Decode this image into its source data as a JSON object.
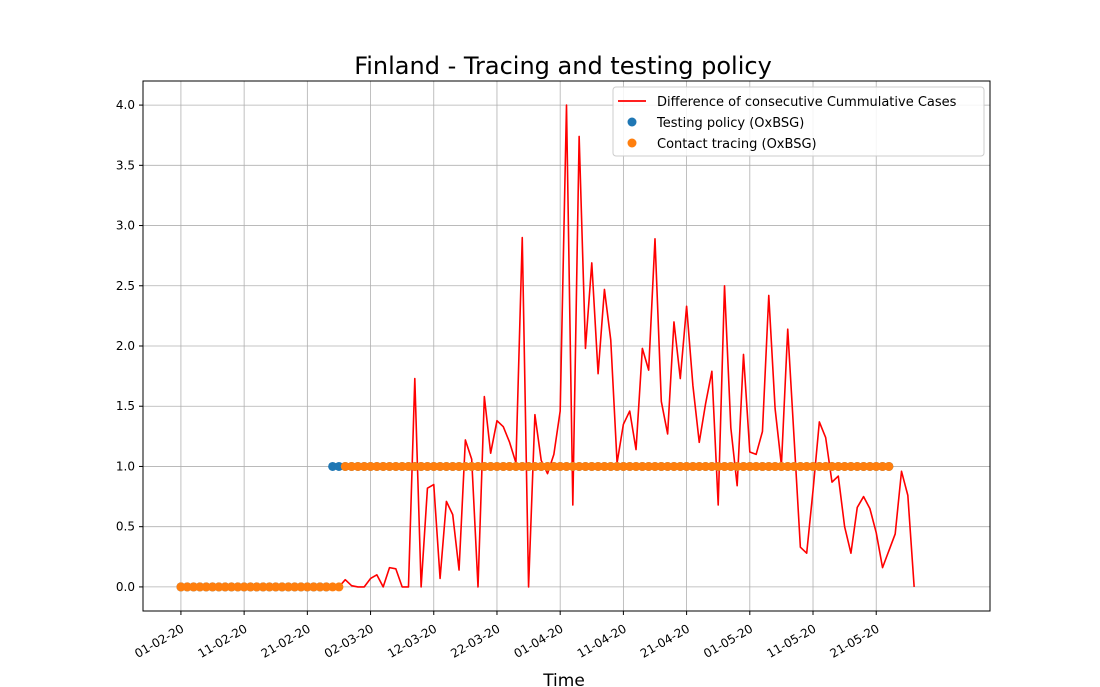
{
  "chart_data": {
    "type": "line",
    "title": "Finland - Tracing and testing policy",
    "xlabel": "Time",
    "ylabel": "",
    "ylim": [
      -0.2,
      4.2
    ],
    "xlim": [
      "2020-01-26",
      "2020-06-08"
    ],
    "grid": true,
    "legend_position": "top-right",
    "x_ticks": [
      {
        "date": "2020-02-01",
        "label": "01-02-20"
      },
      {
        "date": "2020-02-11",
        "label": "11-02-20"
      },
      {
        "date": "2020-02-21",
        "label": "21-02-20"
      },
      {
        "date": "2020-03-02",
        "label": "02-03-20"
      },
      {
        "date": "2020-03-12",
        "label": "12-03-20"
      },
      {
        "date": "2020-03-22",
        "label": "22-03-20"
      },
      {
        "date": "2020-04-01",
        "label": "01-04-20"
      },
      {
        "date": "2020-04-11",
        "label": "11-04-20"
      },
      {
        "date": "2020-04-21",
        "label": "21-04-20"
      },
      {
        "date": "2020-05-01",
        "label": "01-05-20"
      },
      {
        "date": "2020-05-11",
        "label": "11-05-20"
      },
      {
        "date": "2020-05-21",
        "label": "21-05-20"
      }
    ],
    "y_ticks": [
      {
        "value": 0.0,
        "label": "0.0"
      },
      {
        "value": 0.5,
        "label": "0.5"
      },
      {
        "value": 1.0,
        "label": "1.0"
      },
      {
        "value": 1.5,
        "label": "1.5"
      },
      {
        "value": 2.0,
        "label": "2.0"
      },
      {
        "value": 2.5,
        "label": "2.5"
      },
      {
        "value": 3.0,
        "label": "3.0"
      },
      {
        "value": 3.5,
        "label": "3.5"
      },
      {
        "value": 4.0,
        "label": "4.0"
      }
    ],
    "series": [
      {
        "name": "Difference of consecutive Cummulative Cases",
        "kind": "line",
        "color": "#ff0000",
        "start_date": "2020-02-26",
        "values": [
          0.0,
          0.06,
          0.01,
          0.0,
          0.0,
          0.07,
          0.1,
          0.0,
          0.16,
          0.15,
          0.0,
          0.0,
          1.73,
          0.0,
          0.82,
          0.85,
          0.07,
          0.71,
          0.6,
          0.14,
          1.22,
          1.06,
          0.0,
          1.58,
          1.11,
          1.38,
          1.33,
          1.2,
          1.03,
          2.9,
          0.0,
          1.43,
          1.05,
          0.94,
          1.1,
          1.46,
          4.0,
          0.68,
          3.74,
          1.98,
          2.69,
          1.77,
          2.47,
          2.05,
          1.03,
          1.35,
          1.46,
          1.14,
          1.98,
          1.8,
          2.89,
          1.54,
          1.27,
          2.2,
          1.73,
          2.33,
          1.67,
          1.2,
          1.52,
          1.79,
          0.68,
          2.5,
          1.32,
          0.84,
          1.93,
          1.12,
          1.1,
          1.29,
          2.42,
          1.48,
          1.01,
          2.14,
          1.24,
          0.33,
          0.28,
          0.8,
          1.37,
          1.24,
          0.87,
          0.92,
          0.5,
          0.28,
          0.66,
          0.75,
          0.65,
          0.45,
          0.16,
          null,
          0.44,
          0.96,
          0.76,
          0.0
        ]
      },
      {
        "name": "Testing policy (OxBSG)",
        "kind": "points",
        "color": "#1f77b4",
        "segments": [
          {
            "start_date": "2020-02-01",
            "end_date": "2020-02-24",
            "value": 0.0
          },
          {
            "start_date": "2020-02-25",
            "end_date": "2020-05-23",
            "value": 1.0
          }
        ]
      },
      {
        "name": "Contact tracing (OxBSG)",
        "kind": "points",
        "color": "#ff7f0e",
        "segments": [
          {
            "start_date": "2020-02-01",
            "end_date": "2020-02-26",
            "value": 0.0
          },
          {
            "start_date": "2020-02-27",
            "end_date": "2020-05-23",
            "value": 1.0
          }
        ]
      }
    ]
  }
}
